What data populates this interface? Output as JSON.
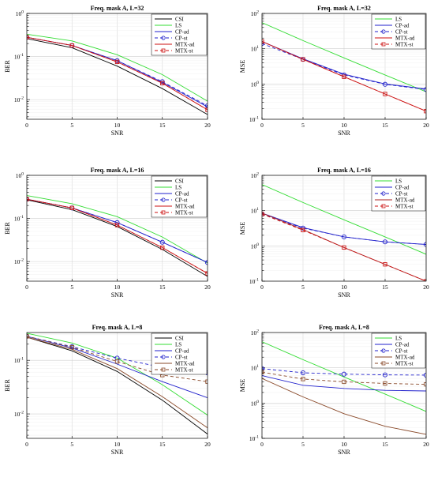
{
  "chart_data": [
    {
      "type": "line",
      "title": "Freq. mask A, L=32",
      "xlabel": "SNR",
      "ylabel": "BER",
      "log_y": true,
      "xlim": [
        0,
        20
      ],
      "ylim": [
        0.0035,
        1
      ],
      "x": [
        0,
        5,
        10,
        15,
        20
      ],
      "xticks": [
        "0",
        "5",
        "10",
        "15",
        "20"
      ],
      "yticks": [
        {
          "value": 1,
          "base": "10",
          "exp": "0"
        },
        {
          "value": 0.1,
          "base": "10",
          "exp": "-1"
        },
        {
          "value": 0.01,
          "base": "10",
          "exp": "-2"
        }
      ],
      "grid": true,
      "legend_position": "top-right",
      "series": [
        {
          "name": "CSI",
          "color": "#000000",
          "dash": "",
          "marker": "",
          "values": [
            0.26,
            0.16,
            0.06,
            0.018,
            0.0045
          ]
        },
        {
          "name": "LS",
          "color": "#33dd33",
          "dash": "",
          "marker": "",
          "values": [
            0.33,
            0.23,
            0.11,
            0.038,
            0.0092
          ]
        },
        {
          "name": "CP-ad",
          "color": "#2222cc",
          "dash": "",
          "marker": "",
          "values": [
            0.28,
            0.18,
            0.08,
            0.025,
            0.0068
          ]
        },
        {
          "name": "CP-st",
          "color": "#2222cc",
          "dash": "4,3",
          "marker": "circle",
          "values": [
            0.28,
            0.18,
            0.08,
            0.026,
            0.0072
          ]
        },
        {
          "name": "MTX-ad",
          "color": "#cc1111",
          "dash": "",
          "marker": "",
          "values": [
            0.28,
            0.18,
            0.075,
            0.024,
            0.0058
          ]
        },
        {
          "name": "MTX-st",
          "color": "#cc1111",
          "dash": "4,3",
          "marker": "square",
          "values": [
            0.28,
            0.18,
            0.075,
            0.024,
            0.0058
          ]
        }
      ]
    },
    {
      "type": "line",
      "title": "Freq. mask A, L=32",
      "xlabel": "SNR",
      "ylabel": "MSE",
      "log_y": true,
      "xlim": [
        0,
        20
      ],
      "ylim": [
        0.1,
        100
      ],
      "x": [
        0,
        5,
        10,
        15,
        20
      ],
      "xticks": [
        "0",
        "5",
        "10",
        "15",
        "20"
      ],
      "yticks": [
        {
          "value": 100,
          "base": "10",
          "exp": "2"
        },
        {
          "value": 10,
          "base": "10",
          "exp": "1"
        },
        {
          "value": 1,
          "base": "10",
          "exp": "0"
        },
        {
          "value": 0.1,
          "base": "10",
          "exp": "-1"
        }
      ],
      "grid": true,
      "legend_position": "top-right",
      "series": [
        {
          "name": "LS",
          "color": "#33dd33",
          "dash": "",
          "marker": "",
          "values": [
            55,
            17,
            5.5,
            1.8,
            0.6
          ]
        },
        {
          "name": "CP-ad",
          "color": "#2222cc",
          "dash": "",
          "marker": "",
          "values": [
            16,
            5.2,
            1.9,
            1.0,
            0.72
          ]
        },
        {
          "name": "CP-st",
          "color": "#2222cc",
          "dash": "4,3",
          "marker": "circle",
          "values": [
            14,
            5.0,
            1.8,
            0.98,
            0.7
          ]
        },
        {
          "name": "MTX-ad",
          "color": "#cc1111",
          "dash": "",
          "marker": "",
          "values": [
            16,
            5.0,
            1.6,
            0.52,
            0.17
          ]
        },
        {
          "name": "MTX-st",
          "color": "#cc1111",
          "dash": "4,3",
          "marker": "square",
          "values": [
            16,
            5.0,
            1.6,
            0.52,
            0.17
          ]
        }
      ]
    },
    {
      "type": "line",
      "title": "Freq. mask A, L=16",
      "xlabel": "SNR",
      "ylabel": "BER",
      "log_y": true,
      "xlim": [
        0,
        20
      ],
      "ylim": [
        0.0035,
        1
      ],
      "x": [
        0,
        5,
        10,
        15,
        20
      ],
      "xticks": [
        "0",
        "5",
        "10",
        "15",
        "20"
      ],
      "yticks": [
        {
          "value": 1,
          "base": "10",
          "exp": "0"
        },
        {
          "value": 0.1,
          "base": "10",
          "exp": "-1"
        },
        {
          "value": 0.01,
          "base": "10",
          "exp": "-2"
        }
      ],
      "grid": true,
      "legend_position": "top-right",
      "series": [
        {
          "name": "CSI",
          "color": "#000000",
          "dash": "",
          "marker": "",
          "values": [
            0.27,
            0.16,
            0.065,
            0.019,
            0.0045
          ]
        },
        {
          "name": "LS",
          "color": "#33dd33",
          "dash": "",
          "marker": "",
          "values": [
            0.34,
            0.22,
            0.11,
            0.037,
            0.0092
          ]
        },
        {
          "name": "CP-ad",
          "color": "#2222cc",
          "dash": "",
          "marker": "",
          "values": [
            0.28,
            0.175,
            0.08,
            0.028,
            0.0095
          ]
        },
        {
          "name": "CP-st",
          "color": "#2222cc",
          "dash": "4,3",
          "marker": "circle",
          "values": [
            0.28,
            0.175,
            0.08,
            0.028,
            0.0095
          ]
        },
        {
          "name": "MTX-ad",
          "color": "#cc1111",
          "dash": "",
          "marker": "",
          "values": [
            0.28,
            0.175,
            0.07,
            0.021,
            0.0053
          ]
        },
        {
          "name": "MTX-st",
          "color": "#cc1111",
          "dash": "4,3",
          "marker": "square",
          "values": [
            0.28,
            0.175,
            0.07,
            0.021,
            0.0053
          ]
        }
      ]
    },
    {
      "type": "line",
      "title": "Freq. mask A, L=16",
      "xlabel": "SNR",
      "ylabel": "MSE",
      "log_y": true,
      "xlim": [
        0,
        20
      ],
      "ylim": [
        0.1,
        100
      ],
      "x": [
        0,
        5,
        10,
        15,
        20
      ],
      "xticks": [
        "0",
        "5",
        "10",
        "15",
        "20"
      ],
      "yticks": [
        {
          "value": 100,
          "base": "10",
          "exp": "2"
        },
        {
          "value": 10,
          "base": "10",
          "exp": "1"
        },
        {
          "value": 1,
          "base": "10",
          "exp": "0"
        },
        {
          "value": 0.1,
          "base": "10",
          "exp": "-1"
        }
      ],
      "grid": true,
      "legend_position": "top-right",
      "series": [
        {
          "name": "LS",
          "color": "#33dd33",
          "dash": "",
          "marker": "",
          "values": [
            55,
            17,
            5.5,
            1.8,
            0.58
          ]
        },
        {
          "name": "CP-ad",
          "color": "#2222cc",
          "dash": "",
          "marker": "",
          "values": [
            8.5,
            3.3,
            1.8,
            1.3,
            1.1
          ]
        },
        {
          "name": "CP-st",
          "color": "#2222cc",
          "dash": "4,3",
          "marker": "circle",
          "values": [
            8.0,
            3.2,
            1.8,
            1.3,
            1.1
          ]
        },
        {
          "name": "MTX-ad",
          "color": "#aa2222",
          "dash": "",
          "marker": "",
          "values": [
            8.5,
            2.9,
            0.9,
            0.3,
            0.1
          ]
        },
        {
          "name": "MTX-st",
          "color": "#cc1111",
          "dash": "4,3",
          "marker": "square",
          "values": [
            8.0,
            2.8,
            0.9,
            0.3,
            0.1
          ]
        }
      ]
    },
    {
      "type": "line",
      "title": "Freq. mask A, L=8",
      "xlabel": "SNR",
      "ylabel": "BER",
      "log_y": true,
      "xlim": [
        0,
        20
      ],
      "ylim": [
        0.0035,
        0.33
      ],
      "x": [
        0,
        5,
        10,
        15,
        20
      ],
      "xticks": [
        "0",
        "5",
        "10",
        "15",
        "20"
      ],
      "yticks": [
        {
          "value": 0.1,
          "base": "10",
          "exp": "-1"
        },
        {
          "value": 0.01,
          "base": "10",
          "exp": "-2"
        }
      ],
      "grid": true,
      "legend_position": "top-right",
      "series": [
        {
          "name": "CSI",
          "color": "#000000",
          "dash": "",
          "marker": "",
          "values": [
            0.27,
            0.15,
            0.062,
            0.018,
            0.0042
          ]
        },
        {
          "name": "LS",
          "color": "#33dd33",
          "dash": "",
          "marker": "",
          "values": [
            0.32,
            0.21,
            0.11,
            0.035,
            0.0095
          ]
        },
        {
          "name": "CP-ad",
          "color": "#2222cc",
          "dash": "",
          "marker": "",
          "values": [
            0.28,
            0.17,
            0.085,
            0.04,
            0.02
          ]
        },
        {
          "name": "CP-st",
          "color": "#2222cc",
          "dash": "4,3",
          "marker": "circle",
          "values": [
            0.28,
            0.18,
            0.11,
            0.074,
            0.058
          ]
        },
        {
          "name": "MTX-ad",
          "color": "#8a4a2a",
          "dash": "",
          "marker": "",
          "values": [
            0.27,
            0.16,
            0.07,
            0.021,
            0.0055
          ]
        },
        {
          "name": "MTX-st",
          "color": "#8a4a2a",
          "dash": "4,3",
          "marker": "square",
          "values": [
            0.28,
            0.175,
            0.095,
            0.053,
            0.04
          ]
        }
      ]
    },
    {
      "type": "line",
      "title": "Freq. mask A, L=8",
      "xlabel": "SNR",
      "ylabel": "MSE",
      "log_y": true,
      "xlim": [
        0,
        20
      ],
      "ylim": [
        0.1,
        100
      ],
      "x": [
        0,
        5,
        10,
        15,
        20
      ],
      "xticks": [
        "0",
        "5",
        "10",
        "15",
        "20"
      ],
      "yticks": [
        {
          "value": 100,
          "base": "10",
          "exp": "2"
        },
        {
          "value": 10,
          "base": "10",
          "exp": "1"
        },
        {
          "value": 1,
          "base": "10",
          "exp": "0"
        },
        {
          "value": 0.1,
          "base": "10",
          "exp": "-1"
        }
      ],
      "grid": true,
      "legend_position": "top-right",
      "series": [
        {
          "name": "LS",
          "color": "#33dd33",
          "dash": "",
          "marker": "",
          "values": [
            55,
            17,
            5.5,
            1.8,
            0.58
          ]
        },
        {
          "name": "CP-ad",
          "color": "#2222cc",
          "dash": "",
          "marker": "",
          "values": [
            6.0,
            3.2,
            2.6,
            2.3,
            2.2
          ]
        },
        {
          "name": "CP-st",
          "color": "#2222cc",
          "dash": "4,3",
          "marker": "circle",
          "values": [
            9.5,
            7.2,
            6.6,
            6.3,
            6.2
          ]
        },
        {
          "name": "MTX-ad",
          "color": "#8a4a2a",
          "dash": "",
          "marker": "",
          "values": [
            5.0,
            1.5,
            0.5,
            0.22,
            0.13
          ]
        },
        {
          "name": "MTX-st",
          "color": "#8a4a2a",
          "dash": "4,3",
          "marker": "square",
          "values": [
            7.5,
            4.8,
            4.0,
            3.6,
            3.4
          ]
        }
      ]
    }
  ]
}
